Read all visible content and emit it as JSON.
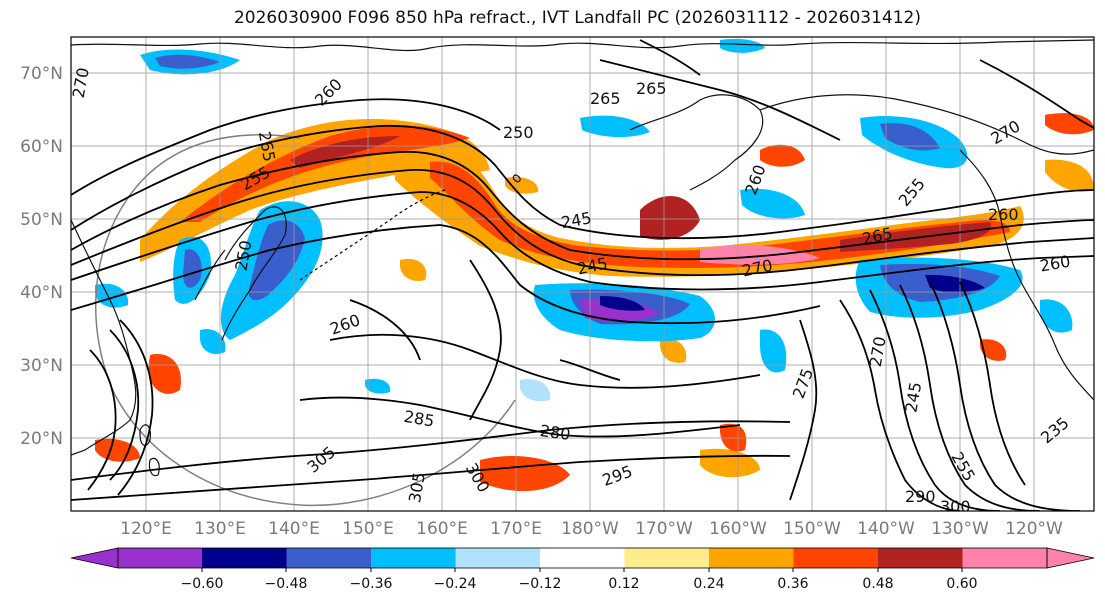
{
  "title": "2026030900 F096 850 hPa refract., IVT Landfall PC (2026031112 - 2026031412)",
  "map": {
    "lat_labels": [
      "70°N",
      "60°N",
      "50°N",
      "40°N",
      "30°N",
      "20°N"
    ],
    "lon_labels": [
      "120°E",
      "130°E",
      "140°E",
      "150°E",
      "160°E",
      "170°E",
      "180°W",
      "170°W",
      "160°W",
      "150°W",
      "140°W",
      "130°W",
      "120°W"
    ],
    "contour_labels": [
      "270",
      "260",
      "265",
      "265",
      "250",
      "255",
      "265",
      "260",
      "255",
      "245",
      "245",
      "250",
      "270",
      "265",
      "260",
      "270",
      "285",
      "280",
      "275",
      "305",
      "305",
      "300",
      "295",
      "290",
      "270",
      "255",
      "235",
      "300",
      "245",
      "260",
      "260"
    ]
  },
  "colorbar": {
    "colors": [
      "#9932CC",
      "#00008B",
      "#3A5FCD",
      "#00BFFF",
      "#B0E2FF",
      "#FFFFFF",
      "#FFEC8B",
      "#FFA500",
      "#FF4500",
      "#B22222",
      "#FF82AB"
    ],
    "ticks": [
      "−0.60",
      "−0.48",
      "−0.36",
      "−0.24",
      "−0.12",
      "0.12",
      "0.24",
      "0.36",
      "0.48",
      "0.60"
    ]
  }
}
